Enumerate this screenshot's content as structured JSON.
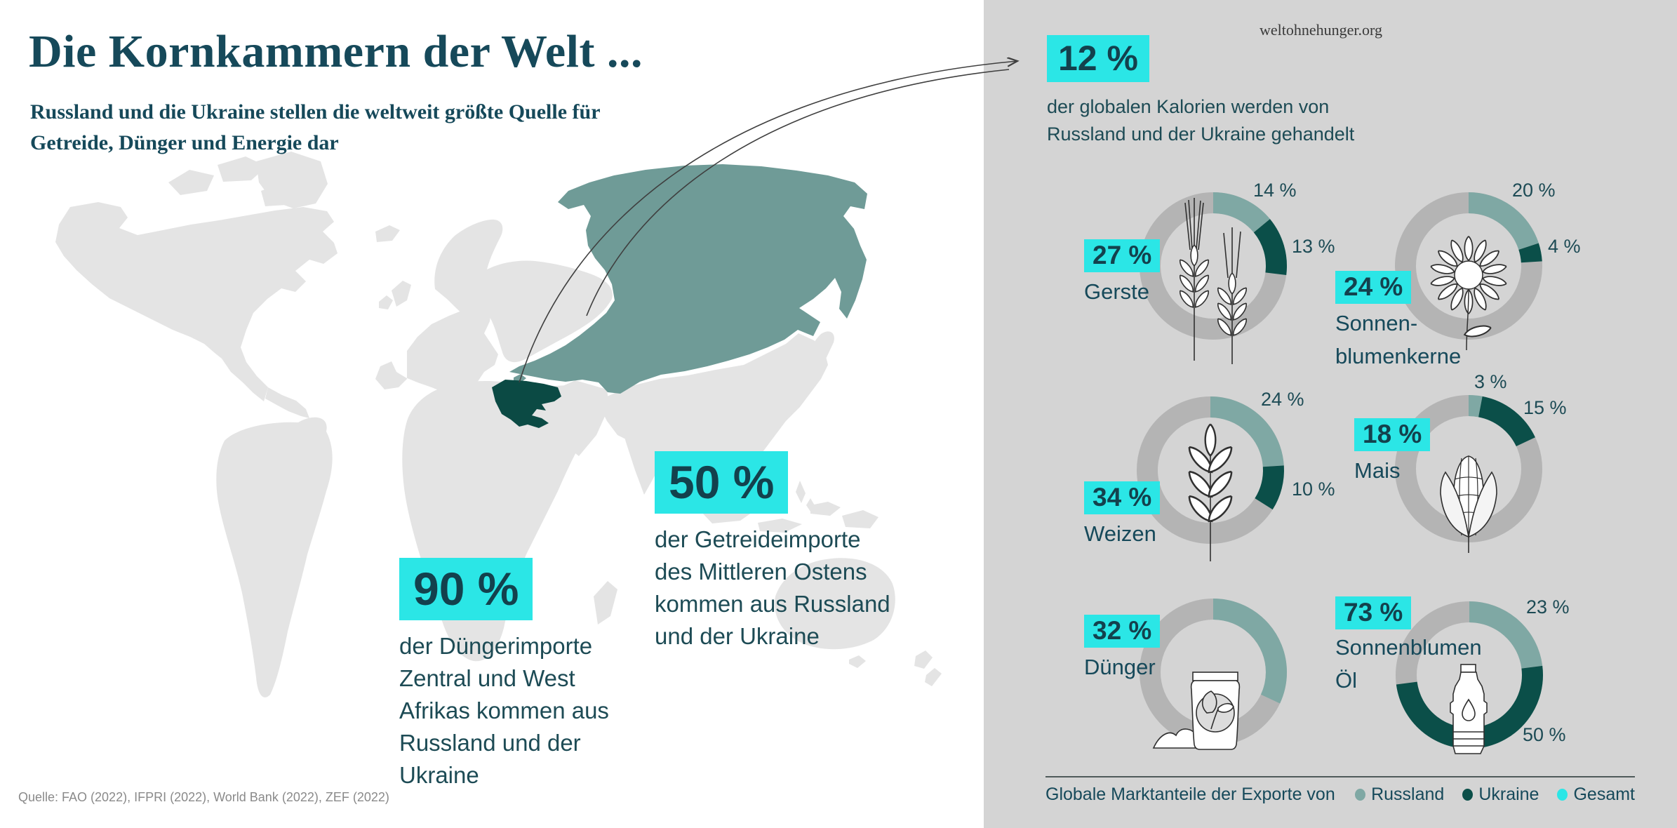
{
  "header": {
    "title": "Die Kornkammern der Welt ...",
    "subtitle": "Russland und die Ukraine stellen die weltweit größte Quelle für\nGetreide, Dünger und Energie dar",
    "site": "weltohnehunger.org"
  },
  "callouts": {
    "calories": {
      "value": "12 %",
      "text": "der globalen Kalorien werden von\nRussland und der Ukraine gehandelt"
    },
    "fertilizer_africa": {
      "value": "90 %",
      "text": "der Düngerimporte\nZentral und West\nAfrikas kommen aus\nRussland und der\nUkraine"
    },
    "grain_middle_east": {
      "value": "50 %",
      "text": "der Getreideimporte\ndes Mittleren Ostens\nkommen aus Russland\nund der Ukraine"
    }
  },
  "legend": {
    "label": "Globale Marktanteile der Exporte von",
    "items": [
      {
        "name": "Russland",
        "color": "#7fa8a4"
      },
      {
        "name": "Ukraine",
        "color": "#0b4f49"
      },
      {
        "name": "Gesamt",
        "color": "#2be6e6"
      }
    ]
  },
  "source": "Quelle: FAO (2022), IFPRI (2022), World Bank (2022), ZEF (2022)",
  "colors": {
    "panel": "#d4d4d4",
    "ring_gray": "#b4b4b4",
    "russland": "#7fa8a4",
    "ukraine": "#0b4f49",
    "gesamt_cyan": "#2be6e6",
    "map_land": "#e4e4e4",
    "map_russia": "#6f9b97",
    "map_ukraine": "#0b4a44",
    "text_dark_teal": "#16495a"
  },
  "chart_data": {
    "type": "pie",
    "subtype": "donut-set",
    "unit": "%",
    "title": "Globale Marktanteile der Exporte von Russland und der Ukraine",
    "series_names": [
      "Russland",
      "Ukraine",
      "Gesamt"
    ],
    "donuts": [
      {
        "id": "gerste",
        "name": "Gerste",
        "icon": "barley-icon",
        "total_label": "27 %",
        "russland_pct": 14,
        "ukraine_pct": 13,
        "russland_label": "14 %",
        "ukraine_label": "13 %"
      },
      {
        "id": "sonnenblumenkerne",
        "name": "Sonnen-\nblumenkerne",
        "icon": "sunflower-icon",
        "total_label": "24 %",
        "russland_pct": 20,
        "ukraine_pct": 4,
        "russland_label": "20 %",
        "ukraine_label": "4 %"
      },
      {
        "id": "weizen",
        "name": "Weizen",
        "icon": "wheat-icon",
        "total_label": "34 %",
        "russland_pct": 24,
        "ukraine_pct": 10,
        "russland_label": "24 %",
        "ukraine_label": "10 %"
      },
      {
        "id": "mais",
        "name": "Mais",
        "icon": "corn-icon",
        "total_label": "18 %",
        "russland_pct": 3,
        "ukraine_pct": 15,
        "russland_label": "3 %",
        "ukraine_label": "15 %"
      },
      {
        "id": "duenger",
        "name": "Dünger",
        "icon": "fertilizer-icon",
        "total_label": "32 %",
        "russland_pct": 32,
        "ukraine_pct": 0,
        "russland_label": null,
        "ukraine_label": null
      },
      {
        "id": "oel",
        "name": "Sonnenblumen\nÖl",
        "icon": "oil-bottle-icon",
        "total_label": "73 %",
        "russland_pct": 23,
        "ukraine_pct": 50,
        "russland_label": "23 %",
        "ukraine_label": "50 %"
      }
    ]
  }
}
